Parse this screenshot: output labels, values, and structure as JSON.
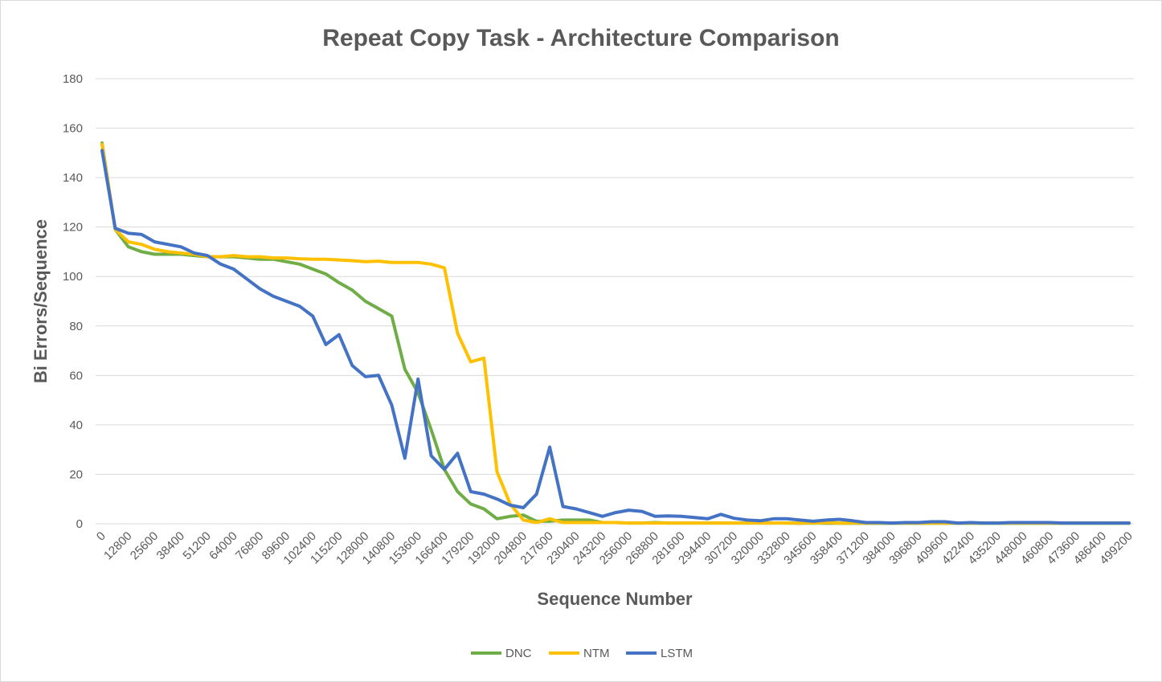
{
  "chart_data": {
    "type": "line",
    "title": "Repeat Copy Task - Architecture Comparison",
    "xlabel": "Sequence Number",
    "ylabel": "Bi Errors/Sequence",
    "ylim": [
      0,
      180
    ],
    "yticks": [
      "0",
      "20",
      "40",
      "60",
      "80",
      "100",
      "120",
      "140",
      "160",
      "180"
    ],
    "xticks": [
      "0",
      "12800",
      "25600",
      "38400",
      "51200",
      "64000",
      "76800",
      "89600",
      "102400",
      "115200",
      "128000",
      "140800",
      "153600",
      "166400",
      "179200",
      "192000",
      "204800",
      "217600",
      "230400",
      "243200",
      "256000",
      "268800",
      "281600",
      "294400",
      "307200",
      "320000",
      "332800",
      "345600",
      "358400",
      "371200",
      "384000",
      "396800",
      "409600",
      "422400",
      "435200",
      "448000",
      "460800",
      "473600",
      "486400",
      "499200"
    ],
    "x_step": 6400,
    "x_count": 79,
    "grid": true,
    "legend_position": "bottom",
    "series": [
      {
        "name": "DNC",
        "color": "#70ad47",
        "values": [
          154,
          119,
          112,
          110,
          109,
          109,
          109,
          108.5,
          108,
          108,
          108,
          107.5,
          107,
          107,
          106,
          105,
          103,
          101,
          97.5,
          94.5,
          90,
          87,
          84,
          62.5,
          53,
          38,
          22,
          13,
          8,
          6,
          2,
          3,
          3.5,
          1,
          1,
          1.5,
          1.5,
          1.5,
          0.5,
          0.5,
          0.3,
          0.3,
          0.5,
          0.3,
          0.3,
          0.3,
          0.3,
          0.3,
          0.3,
          0.3,
          0.3,
          0.3,
          0.3,
          0.2,
          0.3,
          0.2,
          0.2,
          0.2,
          0.2,
          0.2,
          0.2,
          0.2,
          0.2,
          0.2,
          0.2,
          0.2,
          0.2,
          0.2,
          0.2,
          0.2,
          0.2,
          0.2,
          0.2,
          0.2,
          0.2,
          0.2,
          0.2,
          0.2,
          0.2
        ]
      },
      {
        "name": "NTM",
        "color": "#ffc000",
        "values": [
          153.5,
          119,
          114,
          113,
          111,
          110,
          109.5,
          109,
          108,
          108,
          108.5,
          108,
          108,
          107.5,
          107.5,
          107.2,
          107,
          107,
          106.7,
          106.4,
          106,
          106.2,
          105.7,
          105.7,
          105.7,
          105,
          103.5,
          77,
          65.5,
          67,
          21,
          8,
          1.5,
          0.5,
          2,
          0.5,
          0.5,
          0.5,
          0.5,
          0.5,
          0.3,
          0.3,
          0.3,
          0.3,
          0.3,
          0.3,
          0.3,
          0.3,
          0.3,
          0.3,
          0.3,
          0.3,
          0.3,
          0.3,
          0.3,
          0.5,
          0.3,
          0.3,
          0.3,
          0.3,
          0.3,
          0.3,
          0.3,
          0.3,
          0.3,
          0.3,
          0.3,
          0.3,
          0.3,
          0.3,
          0.3,
          0.3,
          0.3,
          0.3,
          0.3,
          0.3,
          0.3,
          0.3,
          0.3
        ]
      },
      {
        "name": "LSTM",
        "color": "#4472c4",
        "values": [
          151,
          119.5,
          117.5,
          117,
          114,
          113,
          112,
          109.5,
          108.5,
          105,
          103,
          99,
          95,
          92,
          90,
          88,
          84,
          72.5,
          76.5,
          64,
          59.5,
          60,
          48,
          26.5,
          58.5,
          27.5,
          22,
          28.5,
          13,
          12,
          10,
          7.5,
          6.5,
          12,
          31,
          7,
          6,
          4.5,
          3,
          4.5,
          5.5,
          5,
          3,
          3.2,
          3,
          2.5,
          2,
          3.8,
          2.2,
          1.5,
          1.2,
          2,
          2,
          1.5,
          1,
          1.5,
          1.8,
          1.2,
          0.5,
          0.5,
          0.3,
          0.5,
          0.5,
          0.8,
          0.8,
          0.3,
          0.5,
          0.3,
          0.3,
          0.5,
          0.5,
          0.5,
          0.5,
          0.3,
          0.3,
          0.3,
          0.3,
          0.3,
          0.3
        ]
      }
    ]
  }
}
